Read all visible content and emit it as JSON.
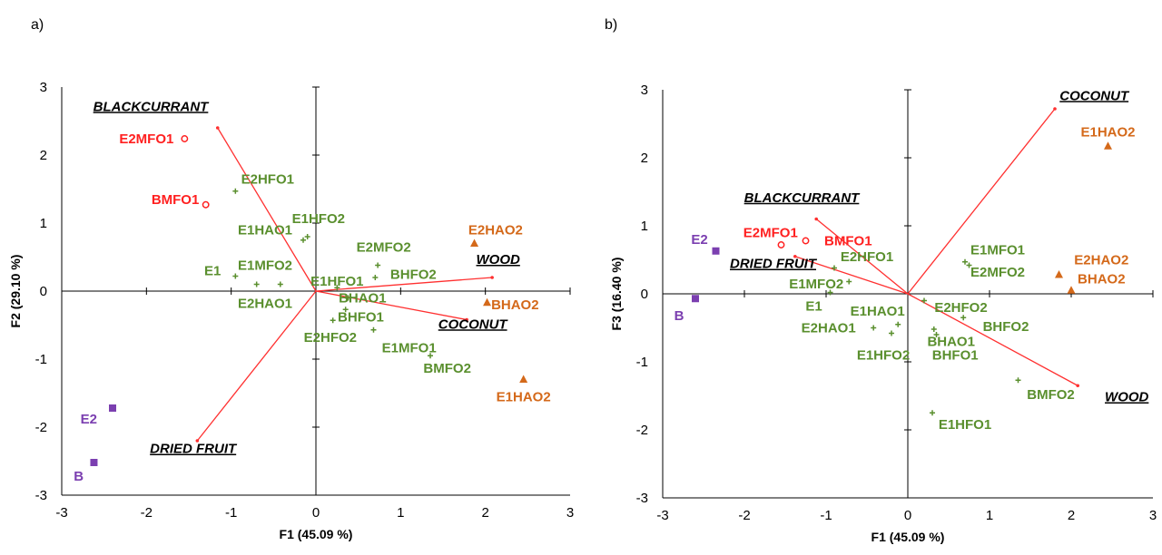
{
  "colors": {
    "green": "#5a8f2e",
    "red": "#ff2020",
    "orange": "#d4691a",
    "purple": "#7b3fb0",
    "vector": "#ff3030"
  },
  "chart_data": [
    {
      "type": "scatter",
      "panel_label": "a)",
      "xlabel": "F1 (45.09 %)",
      "ylabel": "F2 (29.10 %)",
      "xlim": [
        -3,
        3
      ],
      "ylim": [
        -3,
        3
      ],
      "xticks": [
        "-3",
        "-2",
        "-1",
        "0",
        "1",
        "2",
        "3"
      ],
      "yticks": [
        "-3",
        "-2",
        "-1",
        "0",
        "1",
        "2",
        "3"
      ],
      "variables": [
        {
          "name": "BLACKCURRANT",
          "x": -1.16,
          "y": 2.4,
          "lx": -1.95,
          "ly": 2.65
        },
        {
          "name": "WOOD",
          "x": 2.08,
          "y": 0.2,
          "lx": 2.15,
          "ly": 0.4
        },
        {
          "name": "COCONUT",
          "x": 1.78,
          "y": -0.42,
          "lx": 1.85,
          "ly": -0.55
        },
        {
          "name": "DRIED FRUIT",
          "x": -1.4,
          "y": -2.2,
          "lx": -1.45,
          "ly": -2.38
        }
      ],
      "points": [
        {
          "label": "E2MFO1",
          "x": -1.55,
          "y": 2.24,
          "group": "red",
          "marker": "circle",
          "lx": -2.0,
          "ly": 2.24
        },
        {
          "label": "BMFO1",
          "x": -1.3,
          "y": 1.27,
          "group": "red",
          "marker": "circle",
          "lx": -1.66,
          "ly": 1.35
        },
        {
          "label": "E2HFO1",
          "x": -0.95,
          "y": 1.47,
          "group": "green",
          "marker": "plus",
          "lx": -0.57,
          "ly": 1.65
        },
        {
          "label": "E1HAO1",
          "x": -0.15,
          "y": 0.75,
          "group": "green",
          "marker": "plus",
          "lx": -0.6,
          "ly": 0.9
        },
        {
          "label": "E1HFO2",
          "x": -0.1,
          "y": 0.8,
          "group": "green",
          "marker": "plus",
          "lx": 0.03,
          "ly": 1.07
        },
        {
          "label": "E2MFO2",
          "x": 0.73,
          "y": 0.38,
          "group": "green",
          "marker": "plus",
          "lx": 0.8,
          "ly": 0.65
        },
        {
          "label": "E1",
          "x": -0.95,
          "y": 0.22,
          "group": "green",
          "marker": "plus",
          "lx": -1.22,
          "ly": 0.3
        },
        {
          "label": "E1MFO2",
          "x": -0.42,
          "y": 0.1,
          "group": "green",
          "marker": "plus",
          "lx": -0.6,
          "ly": 0.38
        },
        {
          "label": "E2HAO1",
          "x": -0.7,
          "y": 0.1,
          "group": "green",
          "marker": "plus",
          "lx": -0.6,
          "ly": -0.18
        },
        {
          "label": "E1HFO1",
          "x": 0.25,
          "y": 0.05,
          "group": "green",
          "marker": "plus",
          "lx": 0.25,
          "ly": 0.15
        },
        {
          "label": "BHFO2",
          "x": 0.7,
          "y": 0.2,
          "group": "green",
          "marker": "plus",
          "lx": 1.15,
          "ly": 0.25
        },
        {
          "label": "BHAO1",
          "x": 0.38,
          "y": -0.1,
          "group": "green",
          "marker": "plus",
          "lx": 0.55,
          "ly": -0.1
        },
        {
          "label": "BHFO1",
          "x": 0.35,
          "y": -0.27,
          "group": "green",
          "marker": "plus",
          "lx": 0.53,
          "ly": -0.38
        },
        {
          "label": "E2HFO2",
          "x": 0.2,
          "y": -0.43,
          "group": "green",
          "marker": "plus",
          "lx": 0.17,
          "ly": -0.68
        },
        {
          "label": "E1MFO1",
          "x": 0.68,
          "y": -0.57,
          "group": "green",
          "marker": "plus",
          "lx": 1.1,
          "ly": -0.83
        },
        {
          "label": "BMFO2",
          "x": 1.35,
          "y": -0.95,
          "group": "green",
          "marker": "plus",
          "lx": 1.55,
          "ly": -1.13
        },
        {
          "label": "E2HAO2",
          "x": 1.87,
          "y": 0.7,
          "group": "orange",
          "marker": "triangle",
          "lx": 2.12,
          "ly": 0.9
        },
        {
          "label": "BHAO2",
          "x": 2.02,
          "y": -0.17,
          "group": "orange",
          "marker": "triangle",
          "lx": 2.35,
          "ly": -0.2
        },
        {
          "label": "E1HAO2",
          "x": 2.45,
          "y": -1.3,
          "group": "orange",
          "marker": "triangle",
          "lx": 2.45,
          "ly": -1.55
        },
        {
          "label": "E2",
          "x": -2.4,
          "y": -1.72,
          "group": "purple",
          "marker": "square",
          "lx": -2.68,
          "ly": -1.88
        },
        {
          "label": "B",
          "x": -2.62,
          "y": -2.52,
          "group": "purple",
          "marker": "square",
          "lx": -2.8,
          "ly": -2.72
        }
      ]
    },
    {
      "type": "scatter",
      "panel_label": "b)",
      "xlabel": "F1 (45.09 %)",
      "ylabel": "F3 (16.40 %)",
      "xlim": [
        -3,
        3
      ],
      "ylim": [
        -3,
        3
      ],
      "xticks": [
        "-3",
        "-2",
        "-1",
        "0",
        "1",
        "2",
        "3"
      ],
      "yticks": [
        "-3",
        "-2",
        "-1",
        "0",
        "1",
        "2",
        "3"
      ],
      "variables": [
        {
          "name": "COCONUT",
          "x": 1.8,
          "y": 2.72,
          "lx": 2.28,
          "ly": 2.85
        },
        {
          "name": "BLACKCURRANT",
          "x": -1.12,
          "y": 1.1,
          "lx": -1.3,
          "ly": 1.35
        },
        {
          "name": "DRIED FRUIT",
          "x": -1.38,
          "y": 0.55,
          "lx": -1.65,
          "ly": 0.38
        },
        {
          "name": "WOOD",
          "x": 2.08,
          "y": -1.35,
          "lx": 2.68,
          "ly": -1.58
        }
      ],
      "points": [
        {
          "label": "E2MFO1",
          "x": -1.55,
          "y": 0.72,
          "group": "red",
          "marker": "circle",
          "lx": -1.68,
          "ly": 0.9
        },
        {
          "label": "BMFO1",
          "x": -1.25,
          "y": 0.78,
          "group": "red",
          "marker": "circle",
          "lx": -0.73,
          "ly": 0.78
        },
        {
          "label": "E2HFO1",
          "x": -0.9,
          "y": 0.38,
          "group": "green",
          "marker": "plus",
          "lx": -0.5,
          "ly": 0.55
        },
        {
          "label": "E1MFO2",
          "x": -0.72,
          "y": 0.18,
          "group": "green",
          "marker": "plus",
          "lx": -1.12,
          "ly": 0.15
        },
        {
          "label": "E1",
          "x": -0.95,
          "y": 0.02,
          "group": "green",
          "marker": "plus",
          "lx": -1.15,
          "ly": -0.18
        },
        {
          "label": "E2HAO1",
          "x": -0.42,
          "y": -0.5,
          "group": "green",
          "marker": "plus",
          "lx": -0.97,
          "ly": -0.5
        },
        {
          "label": "E1HAO1",
          "x": -0.12,
          "y": -0.45,
          "group": "green",
          "marker": "plus",
          "lx": -0.37,
          "ly": -0.25
        },
        {
          "label": "E1HFO2",
          "x": -0.2,
          "y": -0.58,
          "group": "green",
          "marker": "plus",
          "lx": -0.3,
          "ly": -0.9
        },
        {
          "label": "E2HFO2",
          "x": 0.2,
          "y": -0.1,
          "group": "green",
          "marker": "plus",
          "lx": 0.65,
          "ly": -0.2
        },
        {
          "label": "BHFO2",
          "x": 0.68,
          "y": -0.35,
          "group": "green",
          "marker": "plus",
          "lx": 1.2,
          "ly": -0.48
        },
        {
          "label": "BHAO1",
          "x": 0.32,
          "y": -0.52,
          "group": "green",
          "marker": "plus",
          "lx": 0.53,
          "ly": -0.7
        },
        {
          "label": "BHFO1",
          "x": 0.35,
          "y": -0.6,
          "group": "green",
          "marker": "plus",
          "lx": 0.58,
          "ly": -0.9
        },
        {
          "label": "E1MFO1",
          "x": 0.7,
          "y": 0.47,
          "group": "green",
          "marker": "plus",
          "lx": 1.1,
          "ly": 0.65
        },
        {
          "label": "E2MFO2",
          "x": 0.75,
          "y": 0.42,
          "group": "green",
          "marker": "plus",
          "lx": 1.1,
          "ly": 0.32
        },
        {
          "label": "BMFO2",
          "x": 1.35,
          "y": -1.27,
          "group": "green",
          "marker": "plus",
          "lx": 1.75,
          "ly": -1.48
        },
        {
          "label": "E1HFO1",
          "x": 0.3,
          "y": -1.75,
          "group": "green",
          "marker": "plus",
          "lx": 0.7,
          "ly": -1.92
        },
        {
          "label": "E1HAO2",
          "x": 2.45,
          "y": 2.17,
          "group": "orange",
          "marker": "triangle",
          "lx": 2.45,
          "ly": 2.38
        },
        {
          "label": "E2HAO2",
          "x": 1.85,
          "y": 0.28,
          "group": "orange",
          "marker": "triangle",
          "lx": 2.37,
          "ly": 0.5
        },
        {
          "label": "BHAO2",
          "x": 2.0,
          "y": 0.05,
          "group": "orange",
          "marker": "triangle",
          "lx": 2.37,
          "ly": 0.22
        },
        {
          "label": "E2",
          "x": -2.35,
          "y": 0.63,
          "group": "purple",
          "marker": "square",
          "lx": -2.55,
          "ly": 0.8
        },
        {
          "label": "B",
          "x": -2.6,
          "y": -0.07,
          "group": "purple",
          "marker": "square",
          "lx": -2.8,
          "ly": -0.32
        }
      ]
    }
  ]
}
